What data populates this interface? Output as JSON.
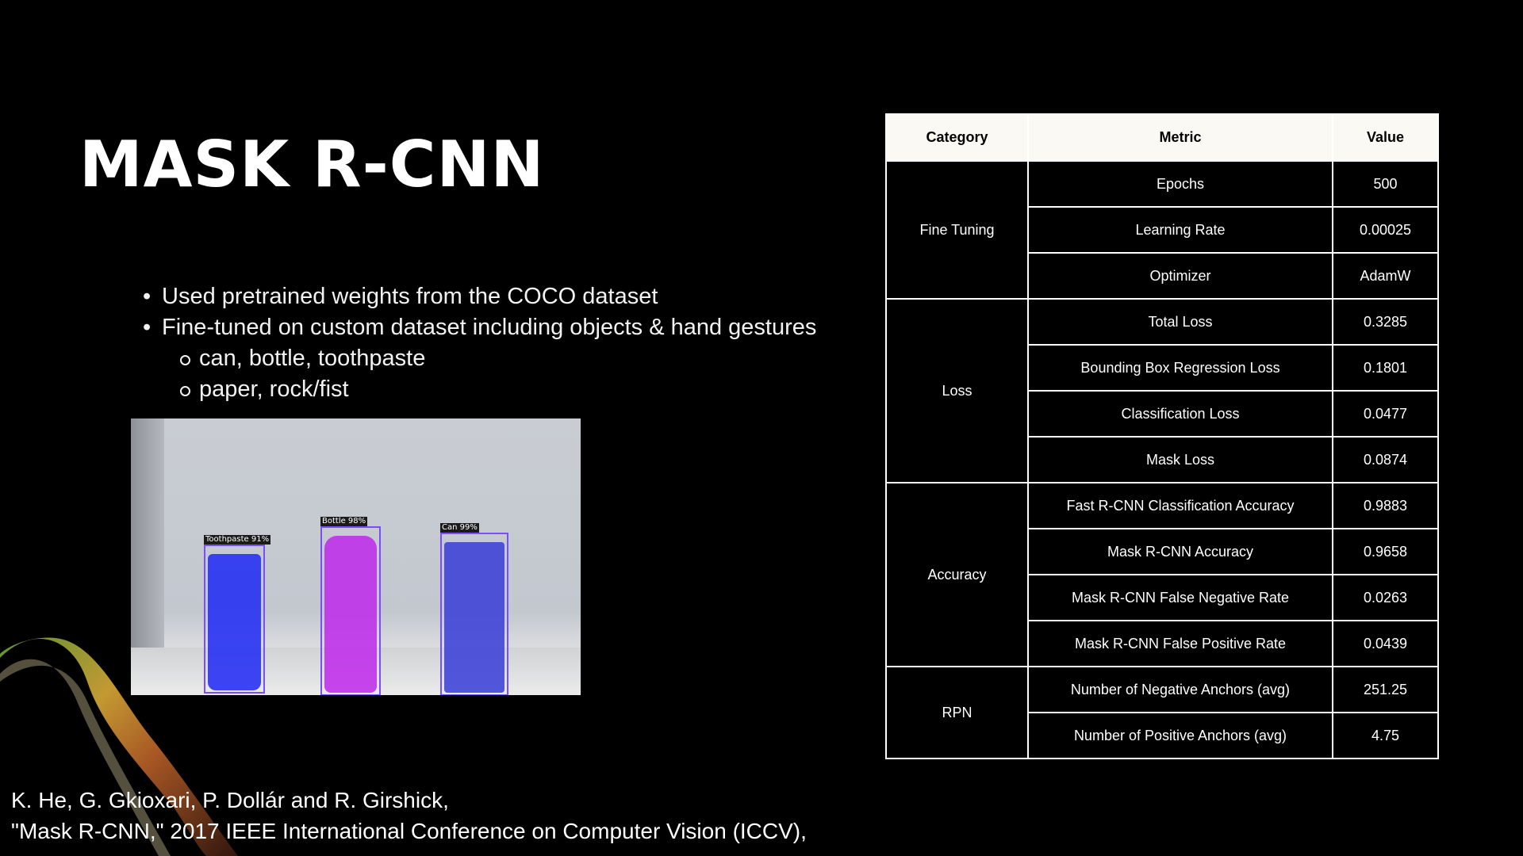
{
  "slide": {
    "title": "MASK R-CNN",
    "bullets": [
      {
        "text": "Used pretrained weights from the COCO dataset",
        "level": 1
      },
      {
        "text": "Fine-tuned on custom dataset including objects & hand gestures",
        "level": 1
      },
      {
        "text": "can, bottle, toothpaste",
        "level": 2
      },
      {
        "text": "paper, rock/fist",
        "level": 2
      }
    ],
    "detections": [
      {
        "label": "Toothpaste 91%"
      },
      {
        "label": "Bottle 98%"
      },
      {
        "label": "Can 99%"
      }
    ],
    "citation": {
      "line1": "K. He, G. Gkioxari, P. Dollár and R. Girshick,",
      "line2": "\"Mask R-CNN,\" 2017 IEEE International Conference on Computer Vision (ICCV),"
    }
  },
  "table": {
    "headers": [
      "Category",
      "Metric",
      "Value"
    ],
    "groups": [
      {
        "category": "Fine Tuning",
        "rows": [
          {
            "metric": "Epochs",
            "value": "500"
          },
          {
            "metric": "Learning Rate",
            "value": "0.00025"
          },
          {
            "metric": "Optimizer",
            "value": "AdamW"
          }
        ]
      },
      {
        "category": "Loss",
        "rows": [
          {
            "metric": "Total  Loss",
            "value": "0.3285"
          },
          {
            "metric": "Bounding  Box Regression Loss",
            "value": "0.1801"
          },
          {
            "metric": "Classification  Loss",
            "value": "0.0477"
          },
          {
            "metric": "Mask  Loss",
            "value": "0.0874"
          }
        ]
      },
      {
        "category": "Accuracy",
        "rows": [
          {
            "metric": "Fast  R-CNN Classification Accuracy",
            "value": "0.9883"
          },
          {
            "metric": "Mask  R-CNN Accuracy",
            "value": "0.9658"
          },
          {
            "metric": "Mask  R-CNN False Negative Rate",
            "value": "0.0263"
          },
          {
            "metric": "Mask  R-CNN False Positive Rate",
            "value": "0.0439"
          }
        ]
      },
      {
        "category": "RPN",
        "rows": [
          {
            "metric": "Number  of Negative Anchors (avg)",
            "value": "251.25"
          },
          {
            "metric": "Number  of Positive Anchors (avg)",
            "value": "4.75"
          }
        ]
      }
    ]
  }
}
